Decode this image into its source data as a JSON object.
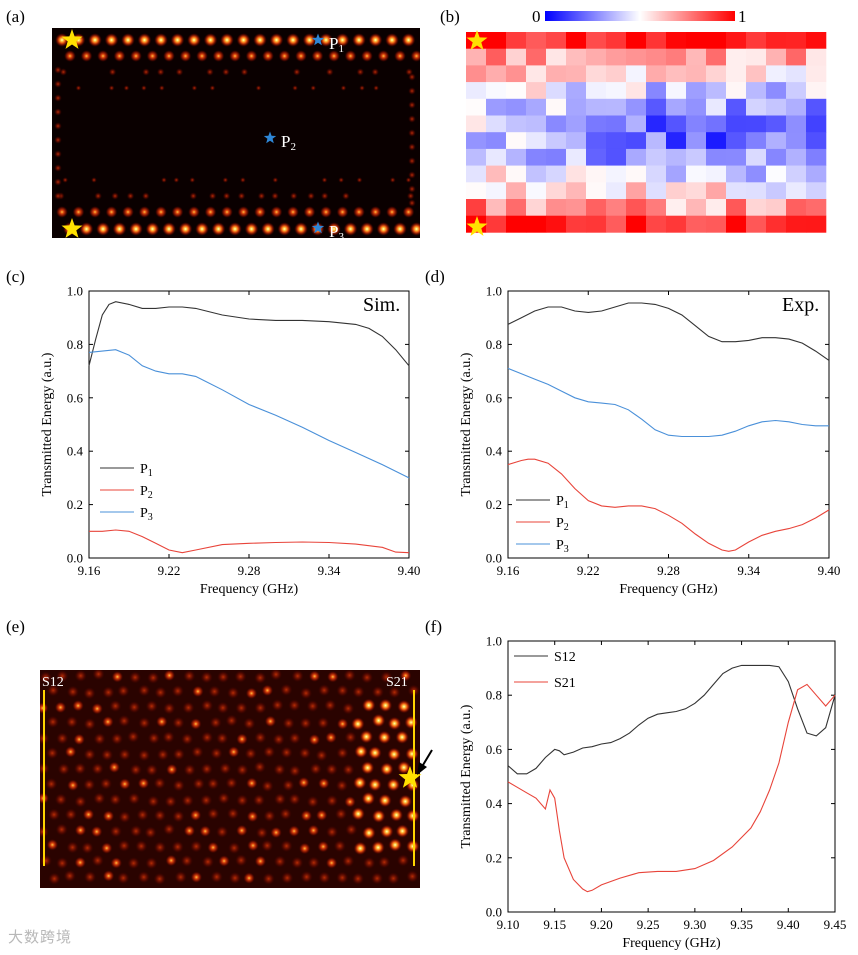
{
  "panel_labels": {
    "a": "(a)",
    "b": "(b)",
    "c": "(c)",
    "d": "(d)",
    "e": "(e)",
    "f": "(f)"
  },
  "panel_a": {
    "probes": [
      "P",
      "P",
      "P"
    ],
    "probe_subs": [
      "1",
      "2",
      "3"
    ],
    "colors": {
      "star": "#ffe100",
      "probe": "#2e86d6"
    }
  },
  "panel_b": {
    "colorbar_min": "0",
    "colorbar_max": "1",
    "colors": {
      "low": "#0000ff",
      "mid": "#ffffff",
      "high": "#ff0000"
    }
  },
  "panel_e": {
    "left_label": "S12",
    "right_label": "S21"
  },
  "watermark": "大数跨境",
  "chart_data": [
    {
      "id": "c",
      "type": "line",
      "annotation": "Sim.",
      "xlabel": "Frequency (GHz)",
      "ylabel": "Transmitted Energy (a.u.)",
      "xlim": [
        9.16,
        9.4
      ],
      "ylim": [
        0.0,
        1.0
      ],
      "xticks": [
        "9.16",
        "9.22",
        "9.28",
        "9.34",
        "9.40"
      ],
      "yticks": [
        "0.0",
        "0.2",
        "0.4",
        "0.6",
        "0.8",
        "1.0"
      ],
      "legend": [
        "P",
        "P",
        "P"
      ],
      "legend_subs": [
        "1",
        "2",
        "3"
      ],
      "series": [
        {
          "name": "P1",
          "color": "#333333",
          "x": [
            9.16,
            9.165,
            9.17,
            9.175,
            9.18,
            9.19,
            9.2,
            9.21,
            9.22,
            9.23,
            9.24,
            9.26,
            9.28,
            9.3,
            9.32,
            9.34,
            9.36,
            9.37,
            9.38,
            9.39,
            9.4
          ],
          "y": [
            0.72,
            0.82,
            0.91,
            0.95,
            0.96,
            0.95,
            0.935,
            0.935,
            0.94,
            0.94,
            0.935,
            0.91,
            0.895,
            0.89,
            0.89,
            0.885,
            0.875,
            0.86,
            0.83,
            0.78,
            0.72
          ]
        },
        {
          "name": "P2",
          "color": "#e8443a",
          "x": [
            9.16,
            9.17,
            9.18,
            9.19,
            9.2,
            9.21,
            9.22,
            9.23,
            9.24,
            9.26,
            9.28,
            9.3,
            9.32,
            9.34,
            9.36,
            9.38,
            9.39,
            9.4
          ],
          "y": [
            0.1,
            0.1,
            0.105,
            0.1,
            0.08,
            0.055,
            0.03,
            0.02,
            0.03,
            0.05,
            0.055,
            0.058,
            0.06,
            0.058,
            0.052,
            0.04,
            0.022,
            0.02
          ]
        },
        {
          "name": "P3",
          "color": "#4a90d9",
          "x": [
            9.16,
            9.17,
            9.18,
            9.19,
            9.2,
            9.21,
            9.22,
            9.23,
            9.24,
            9.26,
            9.28,
            9.3,
            9.32,
            9.34,
            9.36,
            9.38,
            9.4
          ],
          "y": [
            0.77,
            0.775,
            0.78,
            0.76,
            0.72,
            0.7,
            0.69,
            0.69,
            0.68,
            0.63,
            0.575,
            0.535,
            0.49,
            0.44,
            0.395,
            0.35,
            0.3
          ]
        }
      ]
    },
    {
      "id": "d",
      "type": "line",
      "annotation": "Exp.",
      "xlabel": "Frequency (GHz)",
      "ylabel": "Transmitted Energy (a.u.)",
      "xlim": [
        9.16,
        9.4
      ],
      "ylim": [
        0.0,
        1.0
      ],
      "xticks": [
        "9.16",
        "9.22",
        "9.28",
        "9.34",
        "9.40"
      ],
      "yticks": [
        "0.0",
        "0.2",
        "0.4",
        "0.6",
        "0.8",
        "1.0"
      ],
      "legend": [
        "P",
        "P",
        "P"
      ],
      "legend_subs": [
        "1",
        "2",
        "3"
      ],
      "series": [
        {
          "name": "P1",
          "color": "#333333",
          "x": [
            9.16,
            9.17,
            9.18,
            9.19,
            9.2,
            9.21,
            9.22,
            9.23,
            9.24,
            9.25,
            9.26,
            9.27,
            9.28,
            9.29,
            9.3,
            9.31,
            9.32,
            9.33,
            9.34,
            9.35,
            9.36,
            9.37,
            9.38,
            9.39,
            9.4
          ],
          "y": [
            0.875,
            0.9,
            0.925,
            0.94,
            0.94,
            0.925,
            0.92,
            0.925,
            0.94,
            0.955,
            0.955,
            0.95,
            0.935,
            0.91,
            0.87,
            0.83,
            0.81,
            0.81,
            0.815,
            0.825,
            0.825,
            0.82,
            0.805,
            0.775,
            0.74
          ]
        },
        {
          "name": "P2",
          "color": "#e8443a",
          "x": [
            9.16,
            9.17,
            9.175,
            9.18,
            9.19,
            9.2,
            9.21,
            9.22,
            9.23,
            9.24,
            9.25,
            9.26,
            9.27,
            9.28,
            9.29,
            9.3,
            9.31,
            9.32,
            9.325,
            9.33,
            9.34,
            9.35,
            9.36,
            9.37,
            9.38,
            9.39,
            9.4
          ],
          "y": [
            0.35,
            0.365,
            0.37,
            0.37,
            0.355,
            0.315,
            0.26,
            0.215,
            0.195,
            0.19,
            0.195,
            0.195,
            0.185,
            0.16,
            0.13,
            0.09,
            0.055,
            0.03,
            0.025,
            0.03,
            0.06,
            0.085,
            0.1,
            0.11,
            0.125,
            0.15,
            0.18
          ]
        },
        {
          "name": "P3",
          "color": "#4a90d9",
          "x": [
            9.16,
            9.17,
            9.18,
            9.19,
            9.2,
            9.21,
            9.22,
            9.23,
            9.24,
            9.25,
            9.26,
            9.27,
            9.28,
            9.29,
            9.3,
            9.31,
            9.32,
            9.33,
            9.34,
            9.35,
            9.36,
            9.37,
            9.38,
            9.39,
            9.4
          ],
          "y": [
            0.71,
            0.69,
            0.67,
            0.65,
            0.625,
            0.6,
            0.585,
            0.58,
            0.575,
            0.555,
            0.52,
            0.48,
            0.46,
            0.455,
            0.455,
            0.455,
            0.46,
            0.475,
            0.495,
            0.51,
            0.515,
            0.51,
            0.5,
            0.495,
            0.495
          ]
        }
      ]
    },
    {
      "id": "f",
      "type": "line",
      "annotation": "",
      "xlabel": "Frequency (GHz)",
      "ylabel": "Transmitted Energy (a.u.)",
      "xlim": [
        9.1,
        9.45
      ],
      "ylim": [
        0.0,
        1.0
      ],
      "xticks": [
        "9.10",
        "9.15",
        "9.20",
        "9.25",
        "9.30",
        "9.35",
        "9.40",
        "9.45"
      ],
      "yticks": [
        "0.0",
        "0.2",
        "0.4",
        "0.6",
        "0.8",
        "1.0"
      ],
      "legend": [
        "S12",
        "S21"
      ],
      "legend_subs": [
        "",
        ""
      ],
      "series": [
        {
          "name": "S12",
          "color": "#333333",
          "x": [
            9.1,
            9.11,
            9.12,
            9.13,
            9.14,
            9.15,
            9.155,
            9.16,
            9.17,
            9.18,
            9.19,
            9.2,
            9.21,
            9.22,
            9.23,
            9.24,
            9.25,
            9.26,
            9.27,
            9.28,
            9.29,
            9.3,
            9.31,
            9.32,
            9.33,
            9.34,
            9.35,
            9.36,
            9.37,
            9.38,
            9.39,
            9.4,
            9.41,
            9.42,
            9.43,
            9.44,
            9.45
          ],
          "y": [
            0.54,
            0.51,
            0.51,
            0.53,
            0.57,
            0.6,
            0.595,
            0.58,
            0.59,
            0.605,
            0.61,
            0.62,
            0.625,
            0.64,
            0.66,
            0.69,
            0.715,
            0.73,
            0.735,
            0.74,
            0.75,
            0.77,
            0.8,
            0.84,
            0.88,
            0.9,
            0.91,
            0.91,
            0.91,
            0.91,
            0.905,
            0.85,
            0.75,
            0.66,
            0.65,
            0.68,
            0.8
          ]
        },
        {
          "name": "S21",
          "color": "#e8443a",
          "x": [
            9.1,
            9.11,
            9.12,
            9.13,
            9.14,
            9.145,
            9.15,
            9.155,
            9.16,
            9.17,
            9.18,
            9.185,
            9.19,
            9.2,
            9.22,
            9.24,
            9.26,
            9.28,
            9.3,
            9.32,
            9.34,
            9.36,
            9.37,
            9.38,
            9.39,
            9.4,
            9.41,
            9.42,
            9.43,
            9.44,
            9.45
          ],
          "y": [
            0.48,
            0.46,
            0.44,
            0.42,
            0.38,
            0.45,
            0.42,
            0.3,
            0.2,
            0.12,
            0.085,
            0.075,
            0.08,
            0.1,
            0.125,
            0.145,
            0.15,
            0.15,
            0.16,
            0.19,
            0.24,
            0.31,
            0.37,
            0.45,
            0.55,
            0.7,
            0.82,
            0.84,
            0.8,
            0.76,
            0.8
          ]
        }
      ]
    }
  ]
}
